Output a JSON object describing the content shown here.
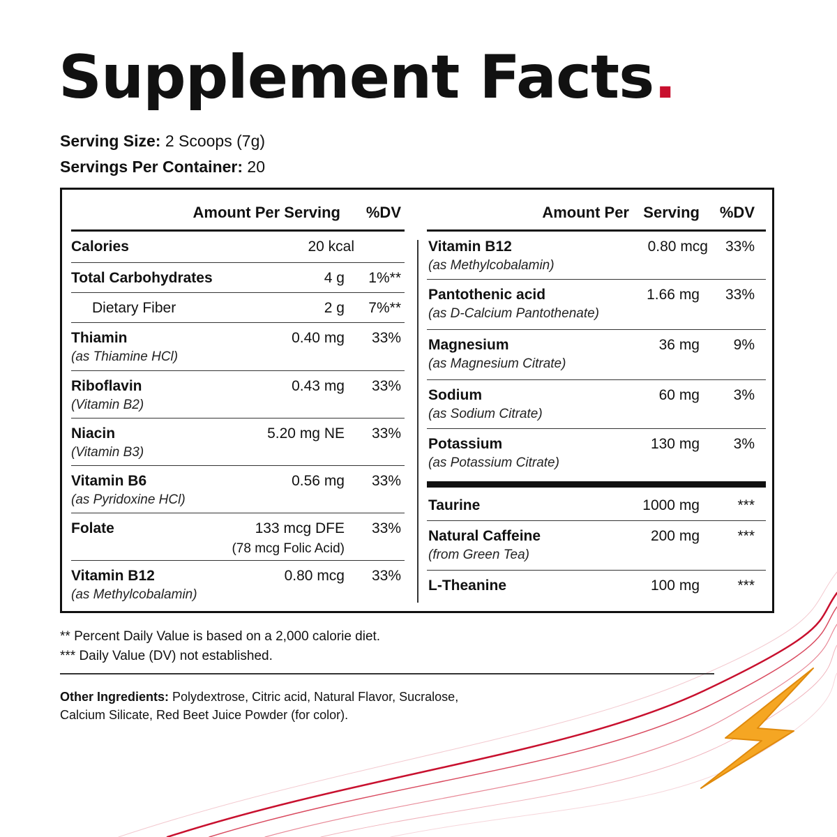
{
  "title": "Supplement Facts",
  "title_dot": ".",
  "serving": {
    "size_label": "Serving Size:",
    "size_value": "2 Scoops (7g)",
    "per_container_label": "Servings Per Container:",
    "per_container_value": "20"
  },
  "left": {
    "head_amount": "Amount Per Serving",
    "head_dv": "%DV",
    "rows": [
      {
        "name": "Calories",
        "amount": "20 kcal",
        "dv": ""
      },
      {
        "name": "Total Carbohydrates",
        "amount": "4 g",
        "dv": "1%**"
      },
      {
        "name": "Dietary Fiber",
        "amount": "2 g",
        "dv": "7%**"
      },
      {
        "name": "Thiamin",
        "sub": "(as Thiamine HCl)",
        "amount": "0.40 mg",
        "dv": "33%"
      },
      {
        "name": "Riboflavin",
        "sub": "(Vitamin B2)",
        "amount": "0.43 mg",
        "dv": "33%"
      },
      {
        "name": "Niacin",
        "sub": "(Vitamin B3)",
        "amount": "5.20 mg NE",
        "dv": "33%"
      },
      {
        "name": "Vitamin B6",
        "sub": "(as Pyridoxine HCl)",
        "amount": "0.56 mg",
        "dv": "33%"
      },
      {
        "name": "Folate",
        "amount": "133 mcg DFE",
        "amount_sub": "(78 mcg Folic Acid)",
        "dv": "33%"
      },
      {
        "name": "Vitamin B12",
        "sub": "(as Methylcobalamin)",
        "amount": "0.80 mcg",
        "dv": "33%"
      }
    ]
  },
  "right": {
    "head_amount": "Amount Per",
    "head_serving": "Serving",
    "head_dv": "%DV",
    "rows": [
      {
        "name": "Vitamin B12",
        "sub": "(as Methylcobalamin)",
        "amount": "0.80 mcg",
        "dv": "33%"
      },
      {
        "name": "Pantothenic acid",
        "sub": "(as D-Calcium Pantothenate)",
        "amount": "1.66 mg",
        "dv": "33%"
      },
      {
        "name": "Magnesium",
        "sub": "(as Magnesium Citrate)",
        "amount": "36 mg",
        "dv": "9%"
      },
      {
        "name": "Sodium",
        "sub": "(as Sodium Citrate)",
        "amount": "60 mg",
        "dv": "3%"
      },
      {
        "name": "Potassium",
        "sub": "(as Potassium Citrate)",
        "amount": "130 mg",
        "dv": "3%"
      },
      {
        "name": "Taurine",
        "amount": "1000 mg",
        "dv": "***"
      },
      {
        "name": "Natural Caffeine",
        "sub": "(from Green Tea)",
        "amount": "200 mg",
        "dv": "***"
      },
      {
        "name": "L-Theanine",
        "amount": "100 mg",
        "dv": "***"
      }
    ]
  },
  "footnotes": [
    "** Percent Daily Value is based on a 2,000 calorie diet.",
    "***  Daily Value (DV) not established."
  ],
  "other_ingredients": {
    "label": "Other Ingredients:",
    "line1": "Polydextrose, Citric acid, Natural Flavor, Sucralose,",
    "line2": "Calcium Silicate, Red Beet Juice Powder (for color)."
  },
  "colors": {
    "accent": "#c8102e",
    "bolt": "#f5a623",
    "text": "#111111"
  },
  "icons": [
    "lightning-bolt-icon"
  ]
}
